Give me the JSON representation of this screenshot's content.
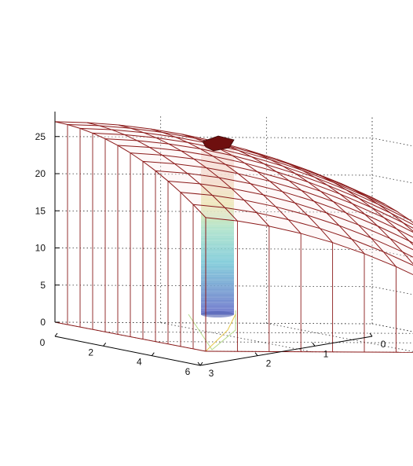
{
  "chart_data": {
    "type": "surface",
    "title": "",
    "xlabel": "",
    "ylabel": "",
    "zlabel": "",
    "x_ticks": [
      "0",
      "2",
      "4",
      "6"
    ],
    "y_ticks": [
      "0",
      "1",
      "2",
      "3"
    ],
    "z_ticks": [
      "0",
      "5",
      "10",
      "15",
      "20",
      "25"
    ],
    "xlim": [
      0,
      6
    ],
    "ylim": [
      0,
      3
    ],
    "zlim": [
      0,
      28
    ],
    "grid": true,
    "mesh_color": "#8b1a1a",
    "surface_peak_z": 27,
    "surface_corner_z": [
      18,
      8
    ],
    "inner_cylinder": {
      "x": 6,
      "y": 3,
      "z_range": [
        0,
        25
      ],
      "colormap": "jet-light"
    },
    "cap_color": "#6e0f0f"
  }
}
